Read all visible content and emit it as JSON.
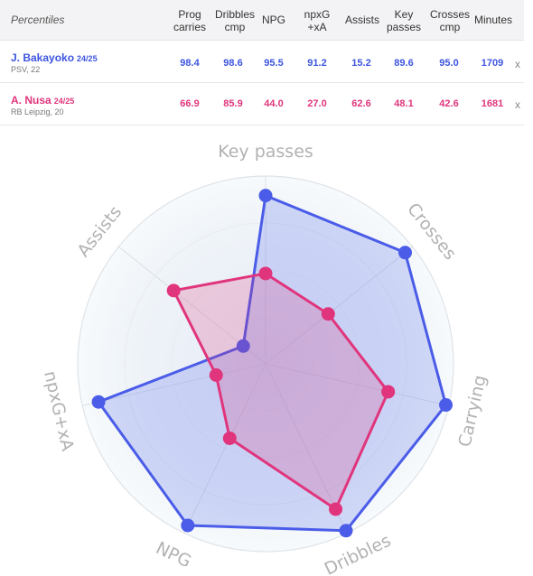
{
  "table": {
    "header_label": "Percentiles",
    "columns": [
      "Prog\ncarries",
      "Dribbles\ncmp",
      "NPG",
      "npxG\n+xA",
      "Assists",
      "Key\npasses",
      "Crosses\ncmp",
      "Minutes"
    ],
    "rows": [
      {
        "name": "J. Bakayoko",
        "season": "24/25",
        "meta": "PSV, 22",
        "color": "#3d55e0",
        "values": [
          "98.4",
          "98.6",
          "95.5",
          "91.2",
          "15.2",
          "89.6",
          "95.0",
          "1709"
        ],
        "remove": "x"
      },
      {
        "name": "A. Nusa",
        "season": "24/25",
        "meta": "RB Leipzig, 20",
        "color": "#e0357c",
        "values": [
          "66.9",
          "85.9",
          "44.0",
          "27.0",
          "62.6",
          "48.1",
          "42.6",
          "1681"
        ],
        "remove": "x"
      }
    ]
  },
  "chart_data": {
    "type": "radar",
    "axes": [
      "Key passes",
      "Crosses",
      "Carrying",
      "Dribbles",
      "NPG",
      "npxG+xA",
      "Assists"
    ],
    "range": [
      0,
      100
    ],
    "series": [
      {
        "name": "J. Bakayoko 24/25",
        "color": "#4a5ce8",
        "values": [
          89.6,
          95.0,
          98.4,
          98.6,
          95.5,
          91.2,
          15.2
        ]
      },
      {
        "name": "A. Nusa 24/25",
        "color": "#e0357c",
        "values": [
          48.1,
          42.6,
          66.9,
          85.9,
          44.0,
          27.0,
          62.6
        ]
      }
    ]
  }
}
